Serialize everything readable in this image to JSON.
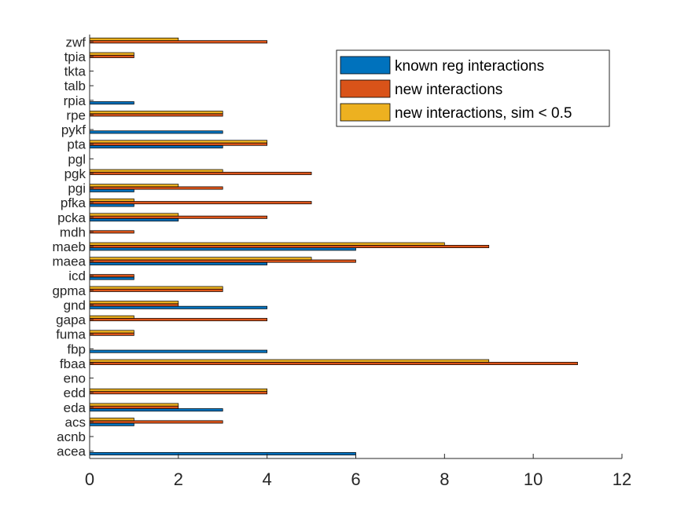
{
  "chart_data": {
    "type": "bar",
    "orientation": "horizontal",
    "title": "",
    "xlabel": "",
    "ylabel": "",
    "xlim": [
      0,
      12
    ],
    "xticks": [
      0,
      2,
      4,
      6,
      8,
      10,
      12
    ],
    "grid": false,
    "legend_position": "top-right",
    "categories": [
      "acea",
      "acnb",
      "acs",
      "eda",
      "edd",
      "eno",
      "fbaa",
      "fbp",
      "fuma",
      "gapa",
      "gnd",
      "gpma",
      "icd",
      "maea",
      "maeb",
      "mdh",
      "pcka",
      "pfka",
      "pgi",
      "pgk",
      "pgl",
      "pta",
      "pykf",
      "rpe",
      "rpia",
      "talb",
      "tkta",
      "tpia",
      "zwf"
    ],
    "series": [
      {
        "name": "known reg interactions",
        "color": "#0072bd",
        "values": [
          6,
          0,
          1,
          3,
          0,
          0,
          0,
          4,
          0,
          0,
          4,
          0,
          1,
          4,
          6,
          0,
          2,
          1,
          1,
          0,
          0,
          3,
          3,
          0,
          1,
          0,
          0,
          0,
          0
        ]
      },
      {
        "name": "new interactions",
        "color": "#d95319",
        "values": [
          0,
          0,
          3,
          2,
          4,
          0,
          11,
          0,
          1,
          4,
          2,
          3,
          1,
          6,
          9,
          1,
          4,
          5,
          3,
          5,
          0,
          4,
          0,
          3,
          0,
          0,
          0,
          1,
          4
        ]
      },
      {
        "name": "new interactions, sim < 0.5",
        "color": "#edb120",
        "values": [
          0,
          0,
          1,
          2,
          4,
          0,
          9,
          0,
          1,
          1,
          2,
          3,
          0,
          5,
          8,
          0,
          2,
          1,
          2,
          3,
          0,
          4,
          0,
          3,
          0,
          0,
          0,
          1,
          2
        ]
      }
    ]
  }
}
